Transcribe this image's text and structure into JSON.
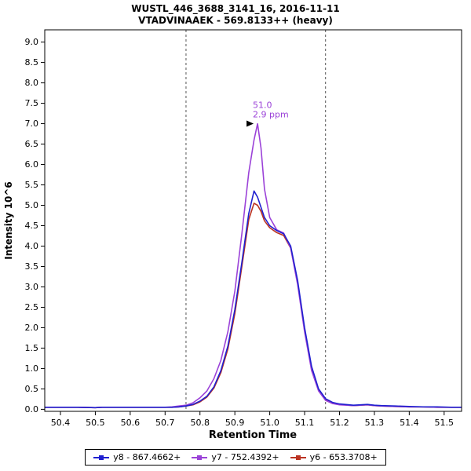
{
  "header": {
    "title_line1": "WUSTL_446_3688_3141_16, 2016-11-11",
    "title_line2": "VTADVINAAEK - 569.8133++ (heavy)"
  },
  "chart_data": {
    "type": "line",
    "title": "WUSTL_446_3688_3141_16, 2016-11-11 / VTADVINAAEK - 569.8133++ (heavy)",
    "xlabel": "Retention Time",
    "ylabel": "Intensity 10^6",
    "xlim": [
      50.355,
      51.55
    ],
    "ylim": [
      -0.05,
      9.3
    ],
    "x_ticks": [
      50.4,
      50.5,
      50.6,
      50.7,
      50.8,
      50.9,
      51.0,
      51.1,
      51.2,
      51.3,
      51.4,
      51.5
    ],
    "y_ticks": [
      0.0,
      0.5,
      1.0,
      1.5,
      2.0,
      2.5,
      3.0,
      3.5,
      4.0,
      4.5,
      5.0,
      5.5,
      6.0,
      6.5,
      7.0,
      7.5,
      8.0,
      8.5,
      9.0
    ],
    "grid": false,
    "legend_position": "bottom",
    "x": [
      50.355,
      50.4,
      50.45,
      50.5,
      50.52,
      50.55,
      50.6,
      50.65,
      50.7,
      50.72,
      50.74,
      50.76,
      50.78,
      50.8,
      50.82,
      50.84,
      50.86,
      50.88,
      50.9,
      50.92,
      50.94,
      50.955,
      50.965,
      50.975,
      50.985,
      51.0,
      51.02,
      51.04,
      51.06,
      51.08,
      51.1,
      51.12,
      51.14,
      51.16,
      51.18,
      51.2,
      51.24,
      51.28,
      51.3,
      51.32,
      51.36,
      51.4,
      51.44,
      51.48,
      51.52,
      51.55
    ],
    "series": [
      {
        "name": "y8 - 867.4662+",
        "color": "#2020D0",
        "values": [
          0.05,
          0.05,
          0.05,
          0.04,
          0.05,
          0.05,
          0.05,
          0.05,
          0.05,
          0.05,
          0.06,
          0.08,
          0.12,
          0.2,
          0.32,
          0.55,
          0.95,
          1.55,
          2.45,
          3.6,
          4.8,
          5.35,
          5.2,
          4.95,
          4.7,
          4.5,
          4.38,
          4.3,
          4.0,
          3.15,
          2.0,
          1.05,
          0.5,
          0.26,
          0.17,
          0.13,
          0.1,
          0.12,
          0.1,
          0.09,
          0.08,
          0.07,
          0.06,
          0.06,
          0.05,
          0.05
        ]
      },
      {
        "name": "y7 - 752.4392+",
        "color": "#9B42D8",
        "values": [
          0.05,
          0.05,
          0.05,
          0.04,
          0.05,
          0.05,
          0.05,
          0.05,
          0.05,
          0.06,
          0.08,
          0.1,
          0.16,
          0.28,
          0.45,
          0.75,
          1.2,
          1.9,
          2.9,
          4.3,
          5.8,
          6.6,
          7.0,
          6.4,
          5.4,
          4.7,
          4.4,
          4.32,
          3.95,
          3.05,
          1.9,
          0.95,
          0.45,
          0.22,
          0.14,
          0.11,
          0.09,
          0.11,
          0.09,
          0.08,
          0.07,
          0.06,
          0.06,
          0.05,
          0.05,
          0.05
        ]
      },
      {
        "name": "y6 - 653.3708+",
        "color": "#BB3322",
        "values": [
          0.05,
          0.05,
          0.05,
          0.04,
          0.05,
          0.05,
          0.05,
          0.05,
          0.05,
          0.05,
          0.06,
          0.08,
          0.11,
          0.18,
          0.3,
          0.52,
          0.9,
          1.48,
          2.35,
          3.5,
          4.65,
          5.05,
          5.0,
          4.85,
          4.62,
          4.45,
          4.33,
          4.26,
          3.95,
          3.1,
          1.95,
          1.0,
          0.48,
          0.24,
          0.16,
          0.12,
          0.09,
          0.11,
          0.09,
          0.08,
          0.07,
          0.06,
          0.06,
          0.05,
          0.05,
          0.05
        ]
      }
    ],
    "boundaries": [
      50.76,
      51.16
    ],
    "annotation": {
      "rt_label": "51.0",
      "ppm_label": "2.9 ppm",
      "x": 50.965,
      "y": 7.0,
      "color": "#9B42D8"
    }
  }
}
